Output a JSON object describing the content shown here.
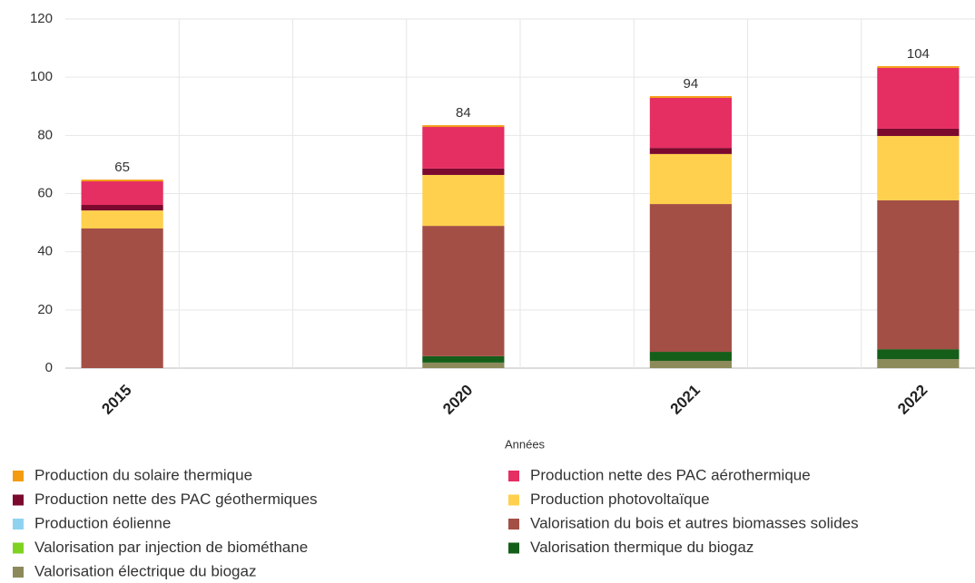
{
  "chart_data": {
    "type": "stacked_bar",
    "x_label": "Années",
    "categories": [
      "2015",
      null,
      null,
      "2020",
      null,
      "2021",
      null,
      "2022"
    ],
    "totals": [
      65,
      null,
      null,
      84,
      null,
      94,
      null,
      104
    ],
    "ylim": [
      0,
      120
    ],
    "yticks": [
      0,
      20,
      40,
      60,
      80,
      100,
      120
    ],
    "grid": true,
    "series": [
      {
        "name": "Production du solaire thermique",
        "color": "#f39c12",
        "values": [
          0.6,
          null,
          null,
          0.6,
          null,
          0.6,
          null,
          0.6
        ]
      },
      {
        "name": "Production nette des PAC aérothermique",
        "color": "#e52e62",
        "values": [
          8.1,
          null,
          null,
          14.3,
          null,
          17.2,
          null,
          20.9
        ]
      },
      {
        "name": "Production nette des PAC géothermiques",
        "color": "#7b0a2e",
        "values": [
          1.9,
          null,
          null,
          2.2,
          null,
          2.1,
          null,
          2.5
        ]
      },
      {
        "name": "Production photovoltaïque",
        "color": "#ffd04d",
        "values": [
          6.2,
          null,
          null,
          17.5,
          null,
          17.2,
          null,
          22.1
        ]
      },
      {
        "name": "Production éolienne",
        "color": "#8fd3f0",
        "values": [
          0,
          null,
          null,
          0,
          null,
          0,
          null,
          0
        ]
      },
      {
        "name": "Valorisation du bois et autres biomasses solides",
        "color": "#a34f46",
        "values": [
          48,
          null,
          null,
          44.8,
          null,
          50.8,
          null,
          51.2
        ]
      },
      {
        "name": "Valorisation par injection de biométhane",
        "color": "#7ed321",
        "values": [
          0,
          null,
          null,
          0,
          null,
          0,
          null,
          0
        ]
      },
      {
        "name": "Valorisation thermique du biogaz",
        "color": "#155e1a",
        "values": [
          0,
          null,
          null,
          2.2,
          null,
          3.1,
          null,
          3.4
        ]
      },
      {
        "name": "Valorisation électrique du biogaz",
        "color": "#8c8a5a",
        "values": [
          0,
          null,
          null,
          1.9,
          null,
          2.5,
          null,
          3.1
        ]
      }
    ]
  }
}
